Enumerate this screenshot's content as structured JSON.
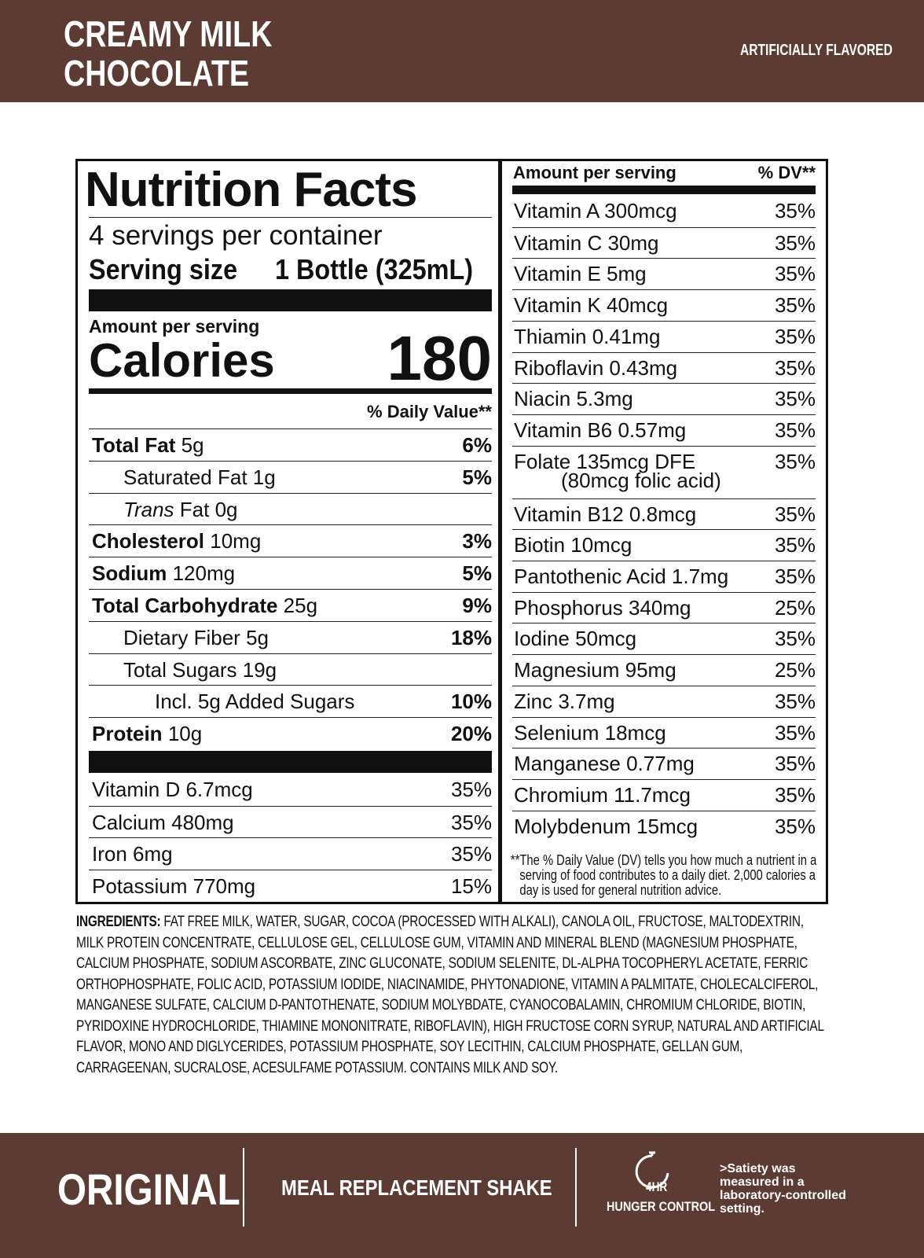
{
  "header": {
    "title_lines": [
      "CREAMY MILK",
      "CHOCOLATE"
    ],
    "flavor": "ARTIFICIALLY FLAVORED"
  },
  "nutrition_facts": {
    "title": "Nutrition Facts",
    "servings": "4 servings per container",
    "serving_size_label": "Serving size",
    "serving_size_value": "1 Bottle (325mL)",
    "amount_label": "Amount per serving",
    "calories_label": "Calories",
    "calories_value": "180",
    "dv_header": "% Daily Value**",
    "nutrients": [
      {
        "name": "Total Fat",
        "amount": "5g",
        "dv": "6%"
      },
      {
        "name": "Saturated Fat",
        "amount": "1g",
        "dv": "5%"
      },
      {
        "name_italic": "Trans",
        "name": "Fat",
        "amount": "0g"
      },
      {
        "name": "Cholesterol",
        "amount": "10mg",
        "dv": "3%"
      },
      {
        "name": "Sodium",
        "amount": "120mg",
        "dv": "5%"
      },
      {
        "name": "Total Carbohydrate",
        "amount": "25g",
        "dv": "9%"
      },
      {
        "name": "Dietary Fiber",
        "amount": "5g",
        "dv": "18%"
      },
      {
        "name": "Total Sugars",
        "amount": "19g"
      },
      {
        "name": "Incl. 5g Added Sugars",
        "dv": "10%"
      },
      {
        "name": "Protein",
        "amount": "10g",
        "dv": "20%"
      }
    ],
    "vitamins": [
      {
        "name": "Vitamin D 6.7mcg",
        "dv": "35%"
      },
      {
        "name": "Calcium 480mg",
        "dv": "35%"
      },
      {
        "name": "Iron 6mg",
        "dv": "35%"
      },
      {
        "name": "Potassium 770mg",
        "dv": "15%"
      }
    ]
  },
  "vitamin_panel": {
    "amount_label": "Amount per serving",
    "dv_header": "% DV**",
    "rows": [
      {
        "name": "Vitamin A 300mcg",
        "dv": "35%"
      },
      {
        "name": "Vitamin C 30mg",
        "dv": "35%"
      },
      {
        "name": "Vitamin E 5mg",
        "dv": "35%"
      },
      {
        "name": "Vitamin K 40mcg",
        "dv": "35%"
      },
      {
        "name": "Thiamin 0.41mg",
        "dv": "35%"
      },
      {
        "name": "Riboflavin 0.43mg",
        "dv": "35%"
      },
      {
        "name": "Niacin 5.3mg",
        "dv": "35%"
      },
      {
        "name": "Vitamin B6 0.57mg",
        "dv": "35%"
      },
      {
        "name": "Folate 135mcg DFE",
        "note": "(80mcg folic acid)",
        "dv": "35%"
      },
      {
        "name": "Vitamin B12 0.8mcg",
        "dv": "35%"
      },
      {
        "name": "Biotin 10mcg",
        "dv": "35%"
      },
      {
        "name": "Pantothenic Acid 1.7mg",
        "dv": "35%"
      },
      {
        "name": "Phosphorus 340mg",
        "dv": "25%"
      },
      {
        "name": "Iodine 50mcg",
        "dv": "35%"
      },
      {
        "name": "Magnesium 95mg",
        "dv": "25%"
      },
      {
        "name": "Zinc 3.7mg",
        "dv": "35%"
      },
      {
        "name": "Selenium 18mcg",
        "dv": "35%"
      },
      {
        "name": "Manganese 0.77mg",
        "dv": "35%"
      },
      {
        "name": "Chromium 11.7mcg",
        "dv": "35%"
      },
      {
        "name": "Molybdenum 15mcg",
        "dv": "35%"
      }
    ],
    "footnote": "**The % Daily Value (DV) tells you how much a nutrient in a serving of food contributes to a daily diet. 2,000 calories a day is used for general nutrition advice."
  },
  "ingredients": {
    "label": "INGREDIENTS:",
    "text": "FAT FREE MILK, WATER, SUGAR, COCOA (PROCESSED WITH ALKALI), CANOLA OIL, FRUCTOSE, MALTODEXTRIN, MILK PROTEIN CONCENTRATE, CELLULOSE GEL, CELLULOSE GUM, VITAMIN AND MINERAL BLEND (MAGNESIUM PHOSPHATE, CALCIUM PHOSPHATE, SODIUM ASCORBATE, ZINC GLUCONATE, SODIUM SELENITE, DL-ALPHA TOCOPHERYL ACETATE, FERRIC ORTHOPHOSPHATE, FOLIC ACID, POTASSIUM IODIDE, NIACINAMIDE, PHYTONADIONE, VITAMIN A PALMITATE, CHOLECALCIFEROL, MANGANESE SULFATE, CALCIUM D-PANTOTHENATE, SODIUM MOLYBDATE, CYANOCOBALAMIN, CHROMIUM CHLORIDE, BIOTIN, PYRIDOXINE HYDROCHLORIDE, THIAMINE MONONITRATE, RIBOFLAVIN), HIGH FRUCTOSE CORN SYRUP, NATURAL AND ARTIFICIAL FLAVOR, MONO AND DIGLYCERIDES, POTASSIUM PHOSPHATE, SOY LECITHIN, CALCIUM PHOSPHATE, GELLAN GUM, CARRAGEENAN, SUCRALOSE, ACESULFAME POTASSIUM. CONTAINS MILK AND SOY."
  },
  "footer": {
    "product": "ORIGINAL",
    "description": "MEAL REPLACEMENT SHAKE",
    "badge_number": "4HR",
    "badge_label": "HUNGER CONTROL",
    "note": ">Satiety was measured in a laboratory-controlled setting."
  }
}
